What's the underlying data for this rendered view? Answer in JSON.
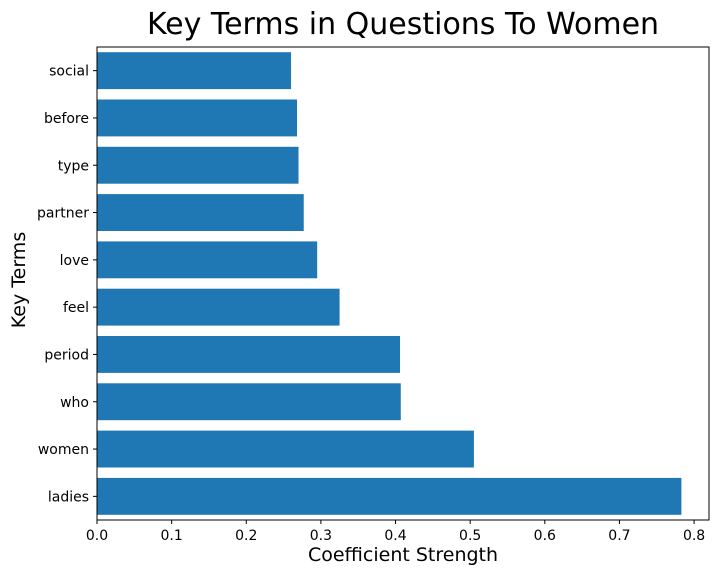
{
  "chart_data": {
    "type": "bar",
    "orientation": "horizontal",
    "title": "Key Terms in Questions To Women",
    "xlabel": "Coefficient Strength",
    "ylabel": "Key Terms",
    "categories": [
      "ladies",
      "women",
      "who",
      "period",
      "feel",
      "love",
      "partner",
      "type",
      "before",
      "social"
    ],
    "values": [
      0.783,
      0.505,
      0.407,
      0.406,
      0.325,
      0.295,
      0.277,
      0.27,
      0.268,
      0.26
    ],
    "xlim": [
      0.0,
      0.82
    ],
    "xticks": [
      "0.0",
      "0.1",
      "0.2",
      "0.3",
      "0.4",
      "0.5",
      "0.6",
      "0.7",
      "0.8"
    ],
    "bar_color": "#1f77b4",
    "grid": false,
    "legend": "none"
  }
}
